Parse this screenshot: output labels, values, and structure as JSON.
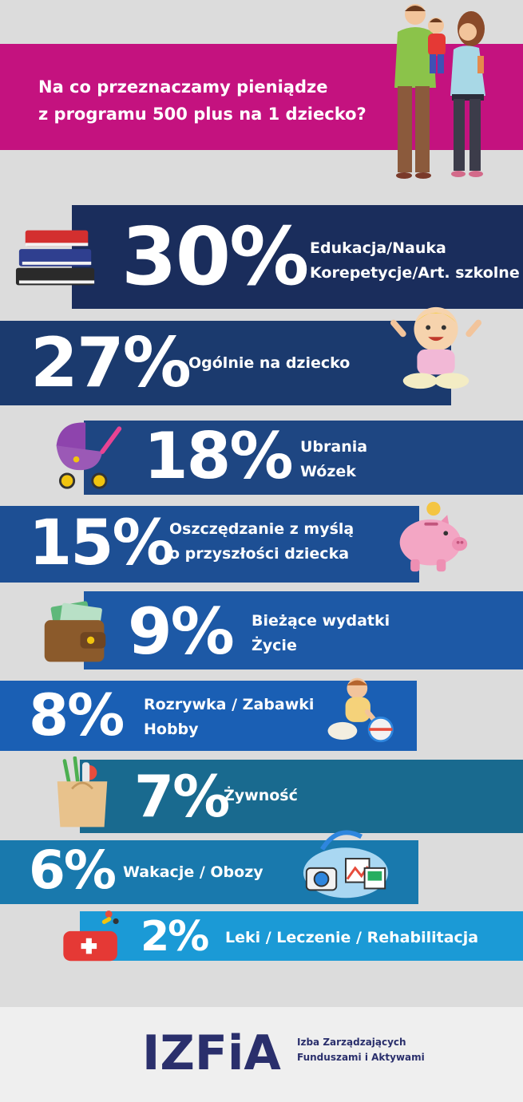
{
  "header": {
    "title_line1": "Na co przeznaczamy pieniądze",
    "title_line2": "z programu 500 plus na 1 dziecko?"
  },
  "chart_data": {
    "type": "bar",
    "title": "Na co przeznaczamy pieniądze z programu 500 plus na 1 dziecko?",
    "unit": "%",
    "items": [
      {
        "value": 30,
        "value_label": "30%",
        "line1": "Edukacja/Nauka",
        "line2": "Korepetycje/Art. szkolne",
        "color": "#1a2d5c",
        "icon": "books-icon"
      },
      {
        "value": 27,
        "value_label": "27%",
        "line1": "Ogólnie na dziecko",
        "line2": "",
        "color": "#1b3a6e",
        "icon": "baby-icon"
      },
      {
        "value": 18,
        "value_label": "18%",
        "line1": "Ubrania",
        "line2": "Wózek",
        "color": "#1e4682",
        "icon": "stroller-icon"
      },
      {
        "value": 15,
        "value_label": "15%",
        "line1": "Oszczędzanie z myślą",
        "line2": "o przyszłości dziecka",
        "color": "#1d4f94",
        "icon": "piggy-bank-icon"
      },
      {
        "value": 9,
        "value_label": "9%",
        "line1": "Bieżące wydatki",
        "line2": "Życie",
        "color": "#1d59a6",
        "icon": "wallet-icon"
      },
      {
        "value": 8,
        "value_label": "8%",
        "line1": "Rozrywka / Zabawki",
        "line2": "Hobby",
        "color": "#1a5fb4",
        "icon": "toddler-ball-icon"
      },
      {
        "value": 7,
        "value_label": "7%",
        "line1": "Żywność",
        "line2": "",
        "color": "#196a8f",
        "icon": "grocery-bag-icon"
      },
      {
        "value": 6,
        "value_label": "6%",
        "line1": "Wakacje / Obozy",
        "line2": "",
        "color": "#1979ad",
        "icon": "travel-bag-icon"
      },
      {
        "value": 2,
        "value_label": "2%",
        "line1": "Leki / Leczenie / Rehabilitacja",
        "line2": "",
        "color": "#1b9ad6",
        "icon": "first-aid-icon"
      }
    ]
  },
  "footer": {
    "logo_text": "IZFiA",
    "org_line1": "Izba Zarządzających",
    "org_line2": "Funduszami i Aktywami"
  },
  "colors": {
    "background": "#dcdcdc",
    "header": "#c4127f",
    "logo_dark": "#2a2f6c",
    "logo_blue": "#1e9ad6"
  }
}
